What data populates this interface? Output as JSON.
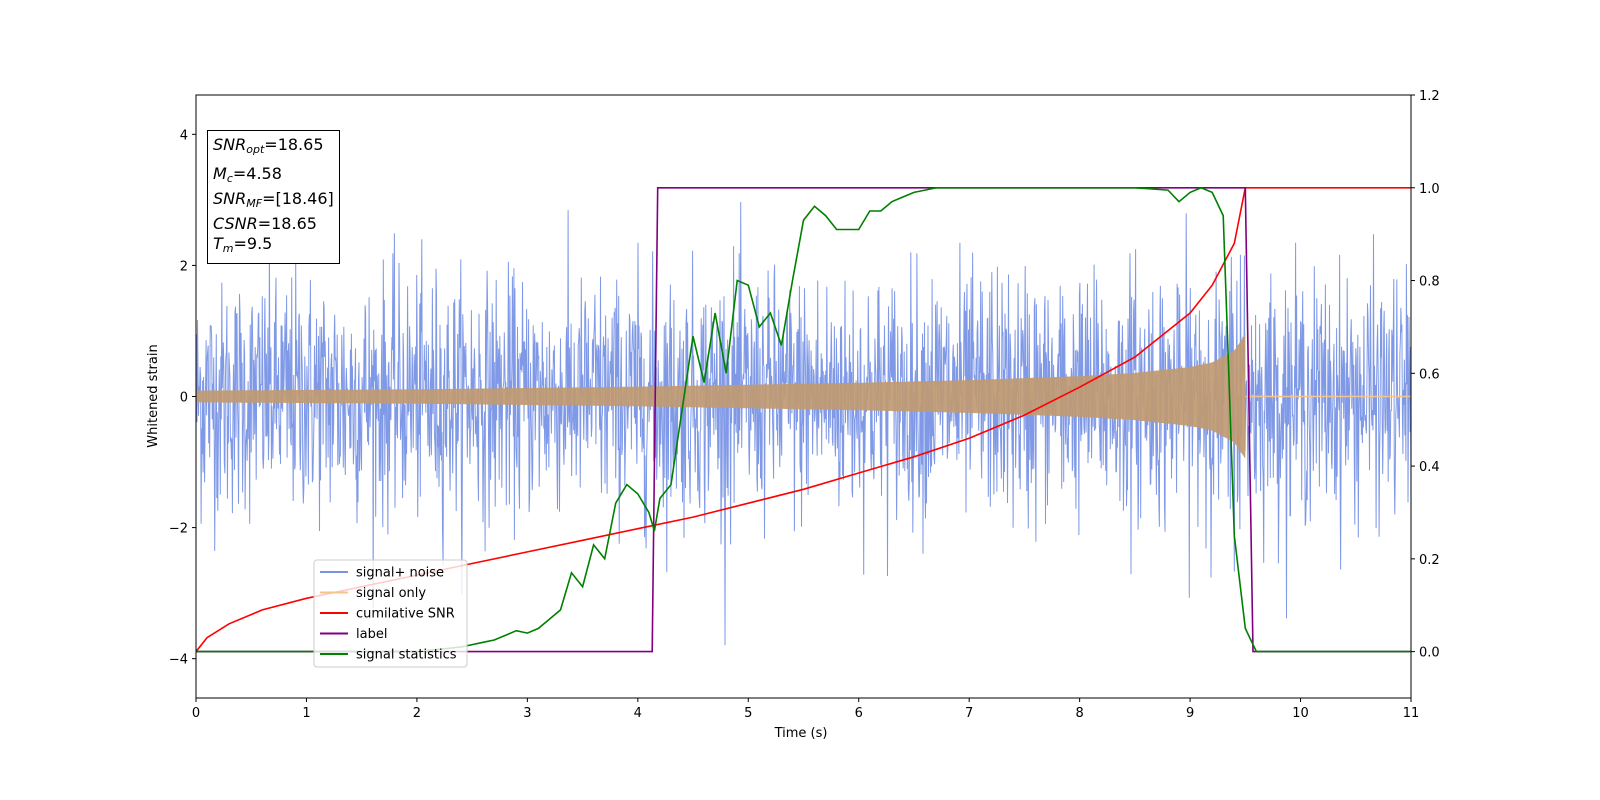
{
  "chart_data": {
    "type": "line",
    "xlabel": "Time (s)",
    "ylabel": "Whitened strain",
    "xlim": [
      0,
      11
    ],
    "ylim_left": [
      -4.6,
      4.6
    ],
    "ylim_right": [
      -0.1,
      1.2
    ],
    "x_ticks": [
      "0",
      "1",
      "2",
      "3",
      "4",
      "5",
      "6",
      "7",
      "8",
      "9",
      "10",
      "11"
    ],
    "y_ticks_left": [
      "−4",
      "−2",
      "0",
      "2",
      "4"
    ],
    "y_ticks_right": [
      "0.0",
      "0.2",
      "0.4",
      "0.6",
      "0.8",
      "1.0",
      "1.2"
    ],
    "legend_location": "lower-left",
    "annotation": {
      "snr_opt": "18.65",
      "mc": "4.58",
      "snr_mf": "[18.46]",
      "csnr": "18.65",
      "tm": "9.5"
    },
    "series": [
      {
        "name": "signal+ noise",
        "axis": "left",
        "color": "#7893e6",
        "description_kind": "noise",
        "noise_std": 0.9,
        "x_range": [
          0,
          11
        ]
      },
      {
        "name": "signal only",
        "axis": "left",
        "color": "#c09a72",
        "description_kind": "chirp-envelope",
        "envelope": {
          "x": [
            0,
            1,
            2,
            3,
            4,
            5,
            6,
            7,
            8,
            8.5,
            9,
            9.2,
            9.4,
            9.5,
            9.55
          ],
          "y": [
            0.09,
            0.1,
            0.11,
            0.13,
            0.15,
            0.18,
            0.21,
            0.25,
            0.31,
            0.36,
            0.45,
            0.52,
            0.7,
            0.95,
            0.0
          ]
        }
      },
      {
        "name": "cumilative SNR",
        "axis": "right",
        "color": "#ff0000",
        "x": [
          0,
          0.1,
          0.3,
          0.6,
          1,
          1.5,
          2,
          2.5,
          3,
          3.5,
          4,
          4.5,
          5,
          5.5,
          6,
          6.5,
          7,
          7.5,
          8,
          8.5,
          9,
          9.2,
          9.4,
          9.5,
          11
        ],
        "y": [
          0.0,
          0.03,
          0.06,
          0.09,
          0.115,
          0.14,
          0.165,
          0.19,
          0.215,
          0.24,
          0.265,
          0.29,
          0.32,
          0.35,
          0.385,
          0.42,
          0.46,
          0.51,
          0.57,
          0.635,
          0.73,
          0.79,
          0.88,
          1.0,
          1.0
        ]
      },
      {
        "name": "label",
        "axis": "right",
        "color": "#800080",
        "x": [
          0,
          4.13,
          4.18,
          9.5,
          9.57,
          11
        ],
        "y": [
          0,
          0,
          1,
          1,
          0,
          0
        ]
      },
      {
        "name": "signal statistics",
        "axis": "right",
        "color": "#008000",
        "x": [
          0,
          1,
          2,
          2.4,
          2.6,
          2.7,
          2.8,
          2.9,
          3.0,
          3.1,
          3.2,
          3.3,
          3.4,
          3.5,
          3.6,
          3.7,
          3.8,
          3.9,
          4.0,
          4.1,
          4.15,
          4.2,
          4.3,
          4.4,
          4.5,
          4.6,
          4.7,
          4.8,
          4.9,
          5.0,
          5.1,
          5.2,
          5.3,
          5.4,
          5.5,
          5.6,
          5.7,
          5.8,
          6.0,
          6.1,
          6.2,
          6.3,
          6.4,
          6.5,
          6.6,
          6.7,
          7.0,
          7.5,
          8.0,
          8.5,
          8.8,
          8.9,
          9.0,
          9.1,
          9.2,
          9.3,
          9.35,
          9.4,
          9.5,
          9.6,
          11
        ],
        "y": [
          0,
          0.0,
          0.0,
          0.01,
          0.02,
          0.025,
          0.035,
          0.045,
          0.04,
          0.05,
          0.07,
          0.09,
          0.17,
          0.14,
          0.23,
          0.2,
          0.32,
          0.36,
          0.34,
          0.3,
          0.26,
          0.33,
          0.36,
          0.52,
          0.68,
          0.58,
          0.73,
          0.6,
          0.8,
          0.79,
          0.7,
          0.73,
          0.66,
          0.8,
          0.93,
          0.96,
          0.94,
          0.91,
          0.91,
          0.95,
          0.95,
          0.97,
          0.98,
          0.99,
          0.995,
          1.0,
          1.0,
          1.0,
          1.0,
          1.0,
          0.995,
          0.97,
          0.99,
          1.0,
          0.99,
          0.94,
          0.6,
          0.25,
          0.05,
          0.0,
          0.0
        ]
      }
    ]
  }
}
